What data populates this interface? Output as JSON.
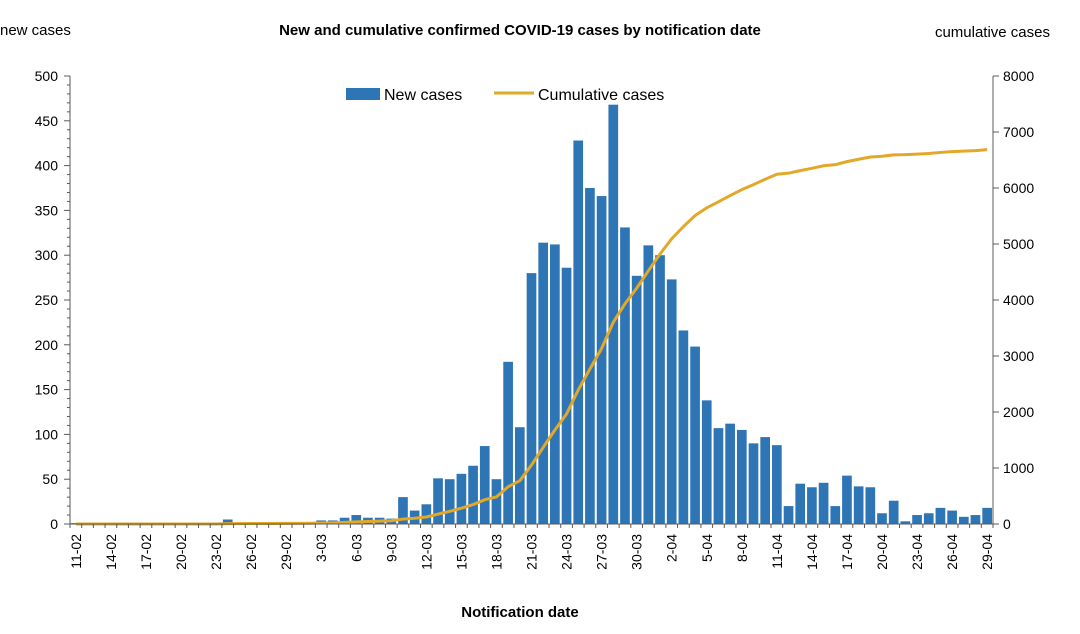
{
  "chart_data": {
    "type": "bar+line",
    "title": "New and cumulative confirmed COVID-19 cases by notification date",
    "left_axis_label": "new cases",
    "right_axis_label": "cumulative cases",
    "xlabel": "Notification date",
    "y_left_lim": [
      0,
      500
    ],
    "y_left_ticks": [
      0,
      50,
      100,
      150,
      200,
      250,
      300,
      350,
      400,
      450,
      500
    ],
    "y_right_lim": [
      0,
      8000
    ],
    "y_right_ticks": [
      0,
      1000,
      2000,
      3000,
      4000,
      5000,
      6000,
      7000,
      8000
    ],
    "x_tick_labels": [
      "11-02",
      "14-02",
      "17-02",
      "20-02",
      "23-02",
      "26-02",
      "29-02",
      "3-03",
      "6-03",
      "9-03",
      "12-03",
      "15-03",
      "18-03",
      "21-03",
      "24-03",
      "27-03",
      "30-03",
      "2-04",
      "5-04",
      "8-04",
      "11-04",
      "14-04",
      "17-04",
      "20-04",
      "23-04",
      "26-04",
      "29-04"
    ],
    "dates": [
      "11-02",
      "12-02",
      "13-02",
      "14-02",
      "15-02",
      "16-02",
      "17-02",
      "18-02",
      "19-02",
      "20-02",
      "21-02",
      "22-02",
      "23-02",
      "24-02",
      "25-02",
      "26-02",
      "27-02",
      "28-02",
      "29-02",
      "1-03",
      "2-03",
      "3-03",
      "4-03",
      "5-03",
      "6-03",
      "7-03",
      "8-03",
      "9-03",
      "10-03",
      "11-03",
      "12-03",
      "13-03",
      "14-03",
      "15-03",
      "16-03",
      "17-03",
      "18-03",
      "19-03",
      "20-03",
      "21-03",
      "22-03",
      "23-03",
      "24-03",
      "25-03",
      "26-03",
      "27-03",
      "28-03",
      "29-03",
      "30-03",
      "31-03",
      "1-04",
      "2-04",
      "3-04",
      "4-04",
      "5-04",
      "6-04",
      "7-04",
      "8-04",
      "9-04",
      "10-04",
      "11-04",
      "12-04",
      "13-04",
      "14-04",
      "15-04",
      "16-04",
      "17-04",
      "18-04",
      "19-04",
      "20-04",
      "21-04",
      "22-04",
      "23-04",
      "24-04",
      "25-04",
      "26-04",
      "27-04",
      "28-04",
      "29-04"
    ],
    "series": [
      {
        "name": "New cases",
        "axis": "left",
        "color": "#2E75B6",
        "values": [
          1,
          0,
          0,
          0,
          0,
          0,
          0,
          0,
          0,
          0,
          0,
          0,
          0,
          5,
          1,
          1,
          1,
          1,
          1,
          1,
          1,
          4,
          4,
          7,
          10,
          7,
          7,
          6,
          30,
          15,
          22,
          51,
          50,
          56,
          65,
          87,
          50,
          181,
          108,
          280,
          314,
          312,
          286,
          428,
          375,
          366,
          468,
          331,
          277,
          311,
          300,
          273,
          216,
          198,
          138,
          107,
          112,
          105,
          90,
          97,
          88,
          20,
          45,
          41,
          46,
          20,
          54,
          42,
          41,
          12,
          26,
          3,
          10,
          12,
          18,
          15,
          8,
          10,
          18
        ]
      },
      {
        "name": "Cumulative cases",
        "axis": "right",
        "color": "#E2A829",
        "values": [
          1,
          1,
          1,
          1,
          1,
          1,
          1,
          1,
          1,
          1,
          1,
          1,
          1,
          6,
          7,
          8,
          9,
          10,
          11,
          12,
          13,
          17,
          21,
          28,
          38,
          45,
          52,
          58,
          88,
          103,
          125,
          176,
          226,
          282,
          347,
          434,
          484,
          665,
          773,
          1053,
          1367,
          1679,
          1965,
          2393,
          2768,
          3134,
          3602,
          3933,
          4210,
          4521,
          4821,
          5094,
          5310,
          5508,
          5646,
          5753,
          5865,
          5970,
          6060,
          6157,
          6245,
          6265,
          6310,
          6351,
          6397,
          6417,
          6471,
          6513,
          6554,
          6566,
          6592,
          6595,
          6605,
          6617,
          6635,
          6650,
          6658,
          6668,
          6686
        ]
      }
    ]
  }
}
